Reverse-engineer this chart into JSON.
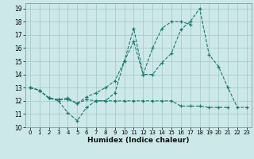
{
  "title": "",
  "xlabel": "Humidex (Indice chaleur)",
  "bg_color": "#cce8e8",
  "grid_color": "#aacccc",
  "line_color": "#1a7a6e",
  "xlim": [
    -0.5,
    23.5
  ],
  "ylim": [
    10,
    19.4
  ],
  "yticks": [
    10,
    11,
    12,
    13,
    14,
    15,
    16,
    17,
    18,
    19
  ],
  "xticks": [
    0,
    1,
    2,
    3,
    4,
    5,
    6,
    7,
    8,
    9,
    10,
    11,
    12,
    13,
    14,
    15,
    16,
    17,
    18,
    19,
    20,
    21,
    22,
    23
  ],
  "series": [
    [
      13.0,
      12.8,
      12.2,
      12.0,
      11.1,
      10.5,
      11.5,
      12.0,
      12.0,
      12.6,
      15.0,
      17.5,
      14.0,
      14.0,
      14.9,
      15.6,
      17.4,
      18.0,
      19.0,
      15.5,
      14.6,
      13.0,
      11.5,
      11.5
    ],
    [
      13.0,
      12.8,
      12.2,
      12.1,
      12.1,
      11.8,
      12.3,
      12.6,
      13.0,
      13.5,
      15.0,
      16.5,
      14.0,
      16.0,
      17.5,
      18.0,
      18.0,
      17.8,
      null,
      null,
      null,
      null,
      null,
      null
    ],
    [
      13.0,
      12.8,
      12.2,
      12.1,
      12.2,
      11.8,
      12.1,
      12.0,
      12.0,
      12.0,
      12.0,
      12.0,
      12.0,
      12.0,
      12.0,
      12.0,
      11.6,
      11.6,
      11.6,
      11.5,
      11.5,
      11.5,
      null,
      null
    ]
  ]
}
